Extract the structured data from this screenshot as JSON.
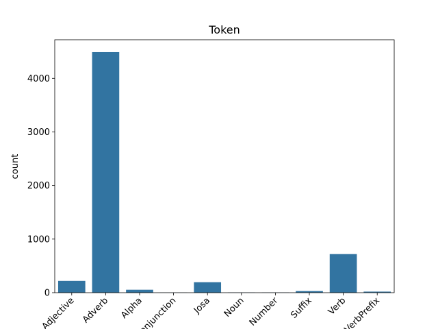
{
  "chart_data": {
    "type": "bar",
    "title": "Token",
    "xlabel": "",
    "ylabel": "count",
    "categories": [
      "Adjective",
      "Adverb",
      "Alpha",
      "Conjunction",
      "Josa",
      "Noun",
      "Number",
      "Suffix",
      "Verb",
      "VerbPrefix"
    ],
    "values": [
      220,
      4490,
      55,
      3,
      195,
      4,
      4,
      30,
      720,
      20
    ],
    "ylim": [
      0,
      4720
    ],
    "yticks": [
      0,
      1000,
      2000,
      3000,
      4000
    ],
    "grid": false,
    "bar_color": "#3274a1"
  }
}
